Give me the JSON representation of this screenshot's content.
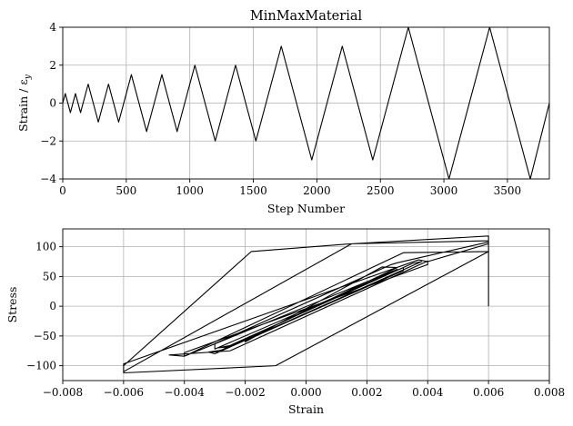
{
  "chart_data": [
    {
      "type": "line",
      "title": "MinMaxMaterial",
      "xlabel": "Step Number",
      "ylabel": "Strain / ε",
      "ylabel_sub": "y",
      "xlim": [
        0,
        3830
      ],
      "ylim": [
        -4,
        4
      ],
      "xticks": [
        0,
        500,
        1000,
        1500,
        2000,
        2500,
        3000,
        3500
      ],
      "xtick_labels": [
        "0",
        "500",
        "1000",
        "1500",
        "2000",
        "2500",
        "3000",
        "3500"
      ],
      "yticks": [
        -4,
        -2,
        0,
        2,
        4
      ],
      "ytick_labels": [
        "−4",
        "−2",
        "0",
        "2",
        "4"
      ],
      "grid": true,
      "series": [
        {
          "x": [
            0,
            20,
            60,
            100,
            140,
            200,
            280,
            360,
            440,
            540,
            660,
            780,
            900,
            1040,
            1200,
            1360,
            1520,
            1720,
            1960,
            2200,
            2440,
            2720,
            3040,
            3360,
            3680,
            3830
          ],
          "y": [
            0,
            0.5,
            -0.5,
            0.5,
            -0.5,
            1,
            -1,
            1,
            -1,
            1.5,
            -1.5,
            1.5,
            -1.5,
            2,
            -2,
            2,
            -2,
            3,
            -3,
            3,
            -3,
            4,
            -4,
            4,
            -4,
            0
          ]
        }
      ]
    },
    {
      "type": "line",
      "title": "",
      "xlabel": "Strain",
      "ylabel": "Stress",
      "xlim": [
        -0.008,
        0.008
      ],
      "ylim": [
        -125,
        130
      ],
      "xticks": [
        -0.008,
        -0.006,
        -0.004,
        -0.002,
        0,
        0.002,
        0.004,
        0.006,
        0.008
      ],
      "xtick_labels": [
        "−0.008",
        "−0.006",
        "−0.004",
        "−0.002",
        "0.000",
        "0.002",
        "0.004",
        "0.006",
        "0.008"
      ],
      "yticks": [
        -100,
        -50,
        0,
        50,
        100
      ],
      "ytick_labels": [
        "−100",
        "−50",
        "0",
        "50",
        "100"
      ],
      "grid": true,
      "series": [
        {
          "x": [
            0.006,
            0.006,
            0.006,
            0.004,
            0.0037,
            -0.006,
            -0.006,
            -0.001,
            0.006,
            0.006,
            0.003,
            0.0028,
            -0.003,
            -0.003,
            0.0032,
            0.0032,
            -0.002,
            -0.002,
            0.0025,
            0.003,
            -0.0025,
            -0.0029,
            -0.0025,
            0.0035,
            0.0038,
            -0.003,
            -0.0032,
            -0.0028,
            0.003,
            -0.0038,
            -0.004,
            -0.0045,
            -0.0025,
            0.004,
            0.004,
            -0.004,
            -0.004,
            0.0032,
            0.006,
            0.006,
            0.0015,
            -0.0018,
            -0.006,
            -0.006,
            0.0015,
            0.006
          ],
          "y": [
            0,
            100,
            105,
            75,
            78,
            -97,
            -112,
            -100,
            92,
            108,
            73,
            70,
            -63,
            -72,
            65,
            60,
            -58,
            -60,
            66,
            65,
            -68,
            -70,
            -66,
            72,
            75,
            -80,
            -77,
            -74,
            62,
            -80,
            -84,
            -82,
            -75,
            76,
            70,
            -78,
            -84,
            90,
            92,
            118,
            105,
            92,
            -100,
            -110,
            105,
            110
          ]
        }
      ]
    }
  ]
}
